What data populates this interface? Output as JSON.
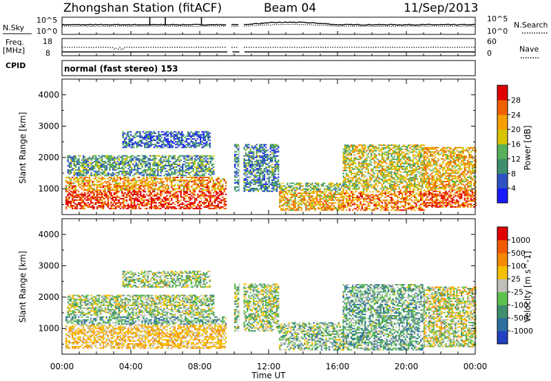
{
  "header": {
    "title": "Zhongshan Station (fitACF)",
    "beam": "Beam 04",
    "date": "11/Sep/2013",
    "mode": "normal (fast stereo) 153"
  },
  "left_labels": {
    "nsky": "N.Sky",
    "freq": "Freq.",
    "freq_unit": "[MHz]",
    "cpid": "CPID"
  },
  "right_labels": {
    "nsearch": "N.Search",
    "nave": "Nave"
  },
  "noise_axis": {
    "left_top": "10^5",
    "left_bottom": "10^0",
    "right_top": "10^5",
    "right_bottom": "10^0"
  },
  "freq_axis": {
    "left_top": "18",
    "left_bottom": "8",
    "right_top": "60",
    "right_bottom": "0"
  },
  "chart_data": [
    {
      "type": "heatmap",
      "title": "",
      "xlabel": "Time UT",
      "ylabel": "Slant Range [km]",
      "x_ticks": [
        "00:00",
        "04:00",
        "08:00",
        "12:00",
        "16:00",
        "20:00",
        "00:00"
      ],
      "y_ticks": [
        "1000",
        "2000",
        "3000",
        "4000"
      ],
      "ylim": [
        180,
        4500
      ],
      "colorbar_label": "Power [dB]",
      "colorbar_ticks": [
        "4",
        "8",
        "12",
        "16",
        "20",
        "24",
        "28"
      ],
      "colorbar_range": [
        0,
        32
      ],
      "colors": [
        "#1a1aff",
        "#2c52c4",
        "#3f8f6f",
        "#57b05a",
        "#d8c400",
        "#f5a000",
        "#f06000",
        "#e00000"
      ],
      "data_gap_hours": [
        [
          9.6,
          9.8
        ],
        [
          10.3,
          10.5
        ]
      ],
      "echo_regions": [
        {
          "t": [
            0.2,
            9.5
          ],
          "r": [
            350,
            1350
          ],
          "level": 0.7
        },
        {
          "t": [
            0.3,
            8.8
          ],
          "r": [
            1400,
            2050
          ],
          "level": 0.35
        },
        {
          "t": [
            3.5,
            8.6
          ],
          "r": [
            2300,
            2800
          ],
          "level": 0.2
        },
        {
          "t": [
            10.0,
            12.6
          ],
          "r": [
            900,
            2400
          ],
          "level": 0.3
        },
        {
          "t": [
            12.6,
            16.3
          ],
          "r": [
            300,
            1200
          ],
          "level": 0.45
        },
        {
          "t": [
            16.3,
            21.0
          ],
          "r": [
            300,
            2400
          ],
          "level": 0.55
        },
        {
          "t": [
            21.0,
            24.0
          ],
          "r": [
            400,
            2300
          ],
          "level": 0.65
        }
      ]
    },
    {
      "type": "heatmap",
      "title": "",
      "xlabel": "Time UT",
      "ylabel": "Slant Range [km]",
      "x_ticks": [
        "00:00",
        "04:00",
        "08:00",
        "12:00",
        "16:00",
        "20:00",
        "00:00"
      ],
      "y_ticks": [
        "1000",
        "2000",
        "3000",
        "4000"
      ],
      "ylim": [
        180,
        4500
      ],
      "colorbar_label": "Velocity [m s^-1]",
      "colorbar_ticks": [
        "1000",
        "500",
        "100",
        "25",
        "-25",
        "-100",
        "-500",
        "-1000"
      ],
      "colors": [
        "#2040c0",
        "#2e6fa0",
        "#3f8f6f",
        "#5cc04c",
        "#c0c0b8",
        "#f5c000",
        "#f58a00",
        "#f05a00",
        "#e00000"
      ],
      "data_gap_hours": [
        [
          9.6,
          9.8
        ],
        [
          10.3,
          10.5
        ]
      ],
      "echo_regions": [
        {
          "t": [
            0.2,
            9.5
          ],
          "r": [
            350,
            1350
          ],
          "level": 0.35
        },
        {
          "t": [
            0.3,
            8.8
          ],
          "r": [
            1400,
            2050
          ],
          "level": 0.45
        },
        {
          "t": [
            3.5,
            8.6
          ],
          "r": [
            2300,
            2800
          ],
          "level": 0.45
        },
        {
          "t": [
            10.0,
            12.6
          ],
          "r": [
            900,
            2400
          ],
          "level": 0.45
        },
        {
          "t": [
            12.6,
            16.3
          ],
          "r": [
            300,
            1200
          ],
          "level": 0.4
        },
        {
          "t": [
            16.3,
            21.0
          ],
          "r": [
            300,
            2400
          ],
          "level": 0.35
        },
        {
          "t": [
            21.0,
            24.0
          ],
          "r": [
            400,
            2300
          ],
          "level": 0.5
        }
      ]
    }
  ]
}
